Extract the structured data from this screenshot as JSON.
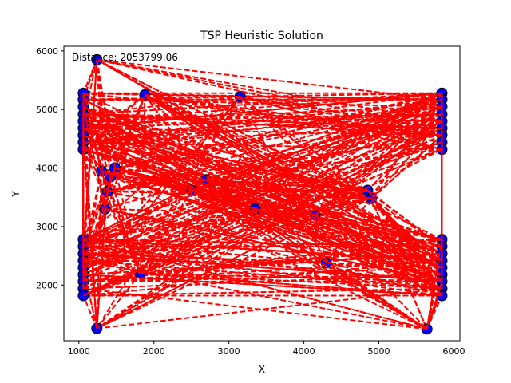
{
  "chart_data": {
    "type": "scatter",
    "title": "TSP Heuristic Solution",
    "xlabel": "X",
    "ylabel": "Y",
    "annotation": "Distance: 2053799.06",
    "xlim": [
      800,
      6080
    ],
    "ylim": [
      1050,
      6080
    ],
    "xticks": [
      1000,
      2000,
      3000,
      4000,
      5000,
      6000
    ],
    "yticks": [
      2000,
      3000,
      4000,
      5000,
      6000
    ],
    "grid": false,
    "legend": "none",
    "colors": {
      "route": "#ff0000",
      "city_fill": "#0000ff",
      "city_edge": "#000000"
    },
    "cities": [
      [
        1240,
        5850
      ],
      [
        1240,
        1260
      ],
      [
        5640,
        1250
      ],
      [
        1060,
        5280
      ],
      [
        1060,
        5170
      ],
      [
        1060,
        5050
      ],
      [
        1060,
        4920
      ],
      [
        1060,
        4800
      ],
      [
        1060,
        4680
      ],
      [
        1060,
        4560
      ],
      [
        1060,
        4440
      ],
      [
        1060,
        4320
      ],
      [
        1060,
        2780
      ],
      [
        1060,
        2660
      ],
      [
        1060,
        2540
      ],
      [
        1060,
        2420
      ],
      [
        1060,
        2300
      ],
      [
        1060,
        2180
      ],
      [
        1060,
        2060
      ],
      [
        1060,
        1940
      ],
      [
        1060,
        1820
      ],
      [
        5840,
        5280
      ],
      [
        5840,
        5170
      ],
      [
        5840,
        5050
      ],
      [
        5840,
        4920
      ],
      [
        5840,
        4800
      ],
      [
        5840,
        4680
      ],
      [
        5840,
        4560
      ],
      [
        5840,
        4440
      ],
      [
        5840,
        4320
      ],
      [
        5840,
        2780
      ],
      [
        5840,
        2660
      ],
      [
        5840,
        2540
      ],
      [
        5840,
        2420
      ],
      [
        5840,
        2300
      ],
      [
        5840,
        2180
      ],
      [
        5840,
        2060
      ],
      [
        5840,
        1940
      ],
      [
        5840,
        1820
      ],
      [
        1880,
        5250
      ],
      [
        3150,
        5220
      ],
      [
        1300,
        3950
      ],
      [
        1420,
        3850
      ],
      [
        1480,
        4000
      ],
      [
        1380,
        3600
      ],
      [
        1350,
        3300
      ],
      [
        2500,
        3620
      ],
      [
        2700,
        3800
      ],
      [
        4850,
        3620
      ],
      [
        4900,
        3480
      ],
      [
        4300,
        2380
      ],
      [
        1820,
        2200
      ],
      [
        3350,
        3300
      ],
      [
        4150,
        3200
      ]
    ]
  }
}
